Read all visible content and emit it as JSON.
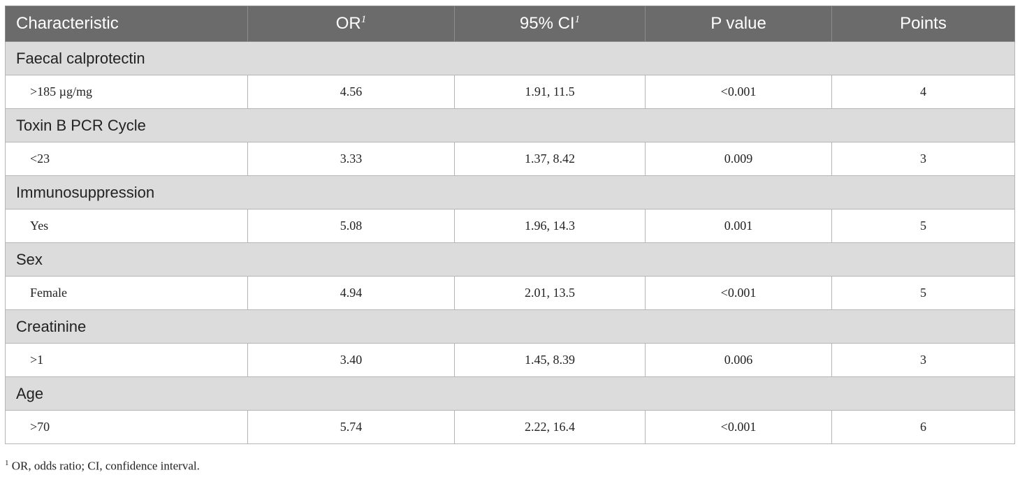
{
  "table": {
    "columns": [
      {
        "text": "Characteristic"
      },
      {
        "text": "OR",
        "note": "1"
      },
      {
        "text": "95% CI",
        "note": "1"
      },
      {
        "text": "P value"
      },
      {
        "text": "Points"
      }
    ],
    "groups": [
      {
        "label": "Faecal calprotectin",
        "rows": [
          [
            ">185 µg/mg",
            "4.56",
            "1.91, 11.5",
            "<0.001",
            "4"
          ]
        ]
      },
      {
        "label": "Toxin B PCR Cycle",
        "rows": [
          [
            "<23",
            "3.33",
            "1.37, 8.42",
            "0.009",
            "3"
          ]
        ]
      },
      {
        "label": "Immunosuppression",
        "rows": [
          [
            "Yes",
            "5.08",
            "1.96, 14.3",
            "0.001",
            "5"
          ]
        ]
      },
      {
        "label": "Sex",
        "rows": [
          [
            "Female",
            "4.94",
            "2.01, 13.5",
            "<0.001",
            "5"
          ]
        ]
      },
      {
        "label": "Creatinine",
        "rows": [
          [
            ">1",
            "3.40",
            "1.45, 8.39",
            "0.006",
            "3"
          ]
        ]
      },
      {
        "label": "Age",
        "rows": [
          [
            ">70",
            "5.74",
            "2.22, 16.4",
            "<0.001",
            "6"
          ]
        ]
      }
    ]
  },
  "footnote": {
    "marker": "1",
    "text": "OR, odds ratio; CI, confidence interval."
  }
}
